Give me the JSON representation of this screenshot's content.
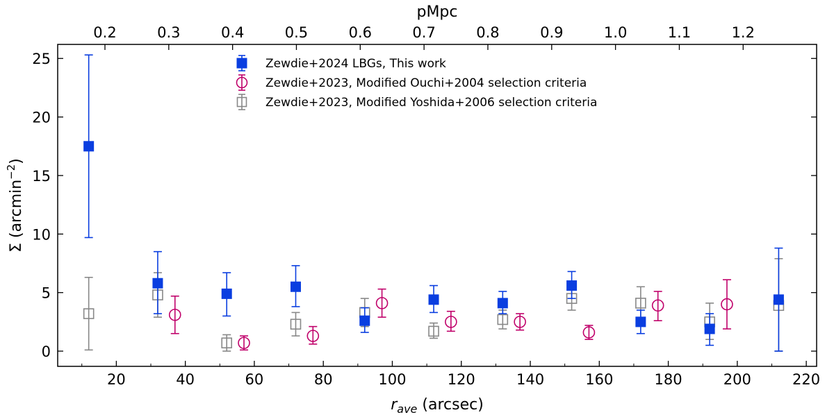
{
  "chart_data": {
    "type": "scatter",
    "title": "",
    "xlabel_main": "r",
    "xlabel_sub": "ave",
    "xlabel_unit": " (arcsec)",
    "ylabel_main": "Σ (arcmin",
    "ylabel_exp": "−2",
    "ylabel_close": ")",
    "top_xlabel": "pMpc",
    "xlim": [
      3,
      223
    ],
    "ylim": [
      -1.3,
      26.2
    ],
    "xticks": [
      20,
      40,
      60,
      80,
      100,
      120,
      140,
      160,
      180,
      200,
      220
    ],
    "yticks": [
      0,
      5,
      10,
      15,
      20,
      25
    ],
    "top_ticks": [
      {
        "label": "0.2",
        "x": 16.7
      },
      {
        "label": "0.3",
        "x": 35.2
      },
      {
        "label": "0.4",
        "x": 53.7
      },
      {
        "label": "0.5",
        "x": 72.2
      },
      {
        "label": "0.6",
        "x": 90.7
      },
      {
        "label": "0.7",
        "x": 109.2
      },
      {
        "label": "0.8",
        "x": 127.7
      },
      {
        "label": "0.9",
        "x": 146.2
      },
      {
        "label": "1.0",
        "x": 164.7
      },
      {
        "label": "1.1",
        "x": 183.2
      },
      {
        "label": "1.2",
        "x": 201.7
      }
    ],
    "legend_position": "top-center",
    "series": [
      {
        "name": "Zewdie+2024 LBGs, This work",
        "marker": "square-filled",
        "color": "#0a3ee0",
        "points": [
          {
            "x": 12,
            "y": 17.5,
            "ylo": 9.7,
            "yhi": 25.3
          },
          {
            "x": 32,
            "y": 5.8,
            "ylo": 3.2,
            "yhi": 8.5
          },
          {
            "x": 52,
            "y": 4.9,
            "ylo": 3.0,
            "yhi": 6.7
          },
          {
            "x": 72,
            "y": 5.5,
            "ylo": 3.8,
            "yhi": 7.3
          },
          {
            "x": 92,
            "y": 2.6,
            "ylo": 1.6,
            "yhi": 3.7
          },
          {
            "x": 112,
            "y": 4.4,
            "ylo": 3.3,
            "yhi": 5.6
          },
          {
            "x": 132,
            "y": 4.1,
            "ylo": 3.2,
            "yhi": 5.1
          },
          {
            "x": 152,
            "y": 5.6,
            "ylo": 4.5,
            "yhi": 6.8
          },
          {
            "x": 172,
            "y": 2.5,
            "ylo": 1.5,
            "yhi": 3.5
          },
          {
            "x": 192,
            "y": 1.9,
            "ylo": 0.5,
            "yhi": 3.2
          },
          {
            "x": 212,
            "y": 4.4,
            "ylo": 0.0,
            "yhi": 8.8
          }
        ]
      },
      {
        "name": "Zewdie+2023, Modified Ouchi+2004 selection criteria",
        "marker": "circle-open",
        "color": "#c0006a",
        "points": [
          {
            "x": 37,
            "y": 3.1,
            "ylo": 1.5,
            "yhi": 4.7
          },
          {
            "x": 57,
            "y": 0.7,
            "ylo": 0.1,
            "yhi": 1.3
          },
          {
            "x": 77,
            "y": 1.3,
            "ylo": 0.6,
            "yhi": 2.1
          },
          {
            "x": 97,
            "y": 4.1,
            "ylo": 2.9,
            "yhi": 5.3
          },
          {
            "x": 117,
            "y": 2.5,
            "ylo": 1.7,
            "yhi": 3.4
          },
          {
            "x": 137,
            "y": 2.5,
            "ylo": 1.8,
            "yhi": 3.2
          },
          {
            "x": 157,
            "y": 1.6,
            "ylo": 1.0,
            "yhi": 2.2
          },
          {
            "x": 177,
            "y": 3.9,
            "ylo": 2.6,
            "yhi": 5.1
          },
          {
            "x": 197,
            "y": 4.0,
            "ylo": 1.9,
            "yhi": 6.1
          }
        ]
      },
      {
        "name": "Zewdie+2023, Modified Yoshida+2006 selection criteria",
        "marker": "square-open",
        "color": "#888888",
        "points": [
          {
            "x": 12,
            "y": 3.2,
            "ylo": 0.1,
            "yhi": 6.3
          },
          {
            "x": 32,
            "y": 4.8,
            "ylo": 2.9,
            "yhi": 6.7
          },
          {
            "x": 52,
            "y": 0.7,
            "ylo": 0.0,
            "yhi": 1.4
          },
          {
            "x": 72,
            "y": 2.3,
            "ylo": 1.3,
            "yhi": 3.3
          },
          {
            "x": 92,
            "y": 3.3,
            "ylo": 2.1,
            "yhi": 4.5
          },
          {
            "x": 112,
            "y": 1.7,
            "ylo": 1.1,
            "yhi": 2.4
          },
          {
            "x": 132,
            "y": 2.7,
            "ylo": 1.9,
            "yhi": 3.5
          },
          {
            "x": 152,
            "y": 4.5,
            "ylo": 3.5,
            "yhi": 5.6
          },
          {
            "x": 172,
            "y": 4.1,
            "ylo": 2.7,
            "yhi": 5.5
          },
          {
            "x": 192,
            "y": 2.5,
            "ylo": 1.0,
            "yhi": 4.1
          },
          {
            "x": 212,
            "y": 3.9,
            "ylo": 0.0,
            "yhi": 7.9
          }
        ]
      }
    ]
  }
}
